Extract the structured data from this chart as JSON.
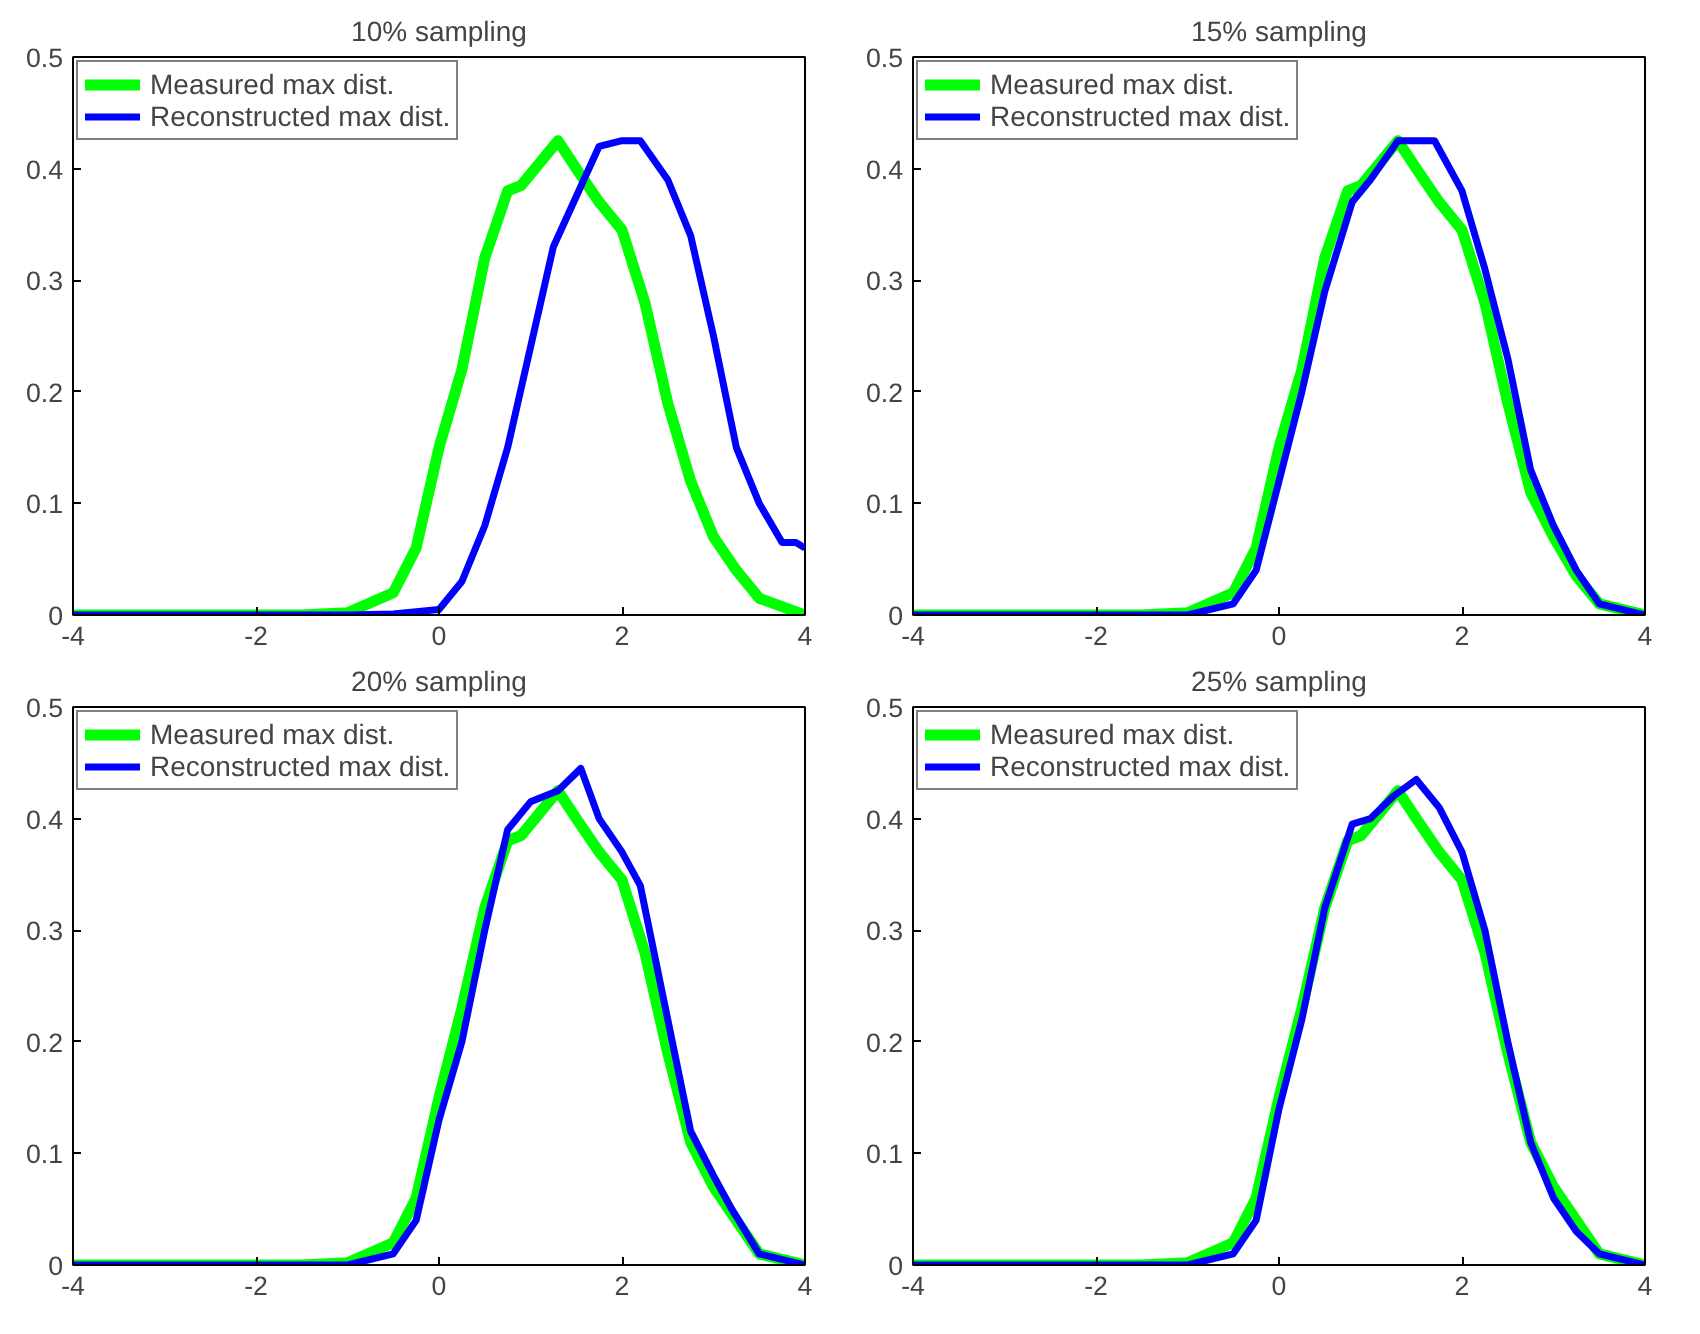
{
  "chart_data": [
    {
      "type": "line",
      "title": "10% sampling",
      "xlim": [
        -4,
        4
      ],
      "ylim": [
        0,
        0.5
      ],
      "xticks": [
        -4,
        -2,
        0,
        2,
        4
      ],
      "yticks": [
        0,
        0.1,
        0.2,
        0.3,
        0.4,
        0.5
      ],
      "grid": false,
      "legend": "top left",
      "series": [
        {
          "name": "Measured max dist.",
          "color": "#00ff00",
          "x": [
            -4,
            -1.5,
            -1,
            -0.5,
            -0.25,
            0,
            0.25,
            0.5,
            0.75,
            0.9,
            1.1,
            1.3,
            1.5,
            1.75,
            2,
            2.25,
            2.5,
            2.75,
            3,
            3.25,
            3.5,
            4
          ],
          "values": [
            0,
            0,
            0.002,
            0.02,
            0.06,
            0.15,
            0.22,
            0.32,
            0.38,
            0.385,
            0.405,
            0.425,
            0.4,
            0.37,
            0.345,
            0.28,
            0.19,
            0.12,
            0.07,
            0.04,
            0.015,
            0
          ]
        },
        {
          "name": "Reconstructed max dist.",
          "color": "#0000ff",
          "x": [
            -4,
            -1,
            -0.5,
            0,
            0.25,
            0.5,
            0.75,
            1,
            1.25,
            1.5,
            1.75,
            2,
            2.2,
            2.5,
            2.75,
            3,
            3.25,
            3.5,
            3.75,
            3.9,
            4
          ],
          "values": [
            0,
            0,
            0.001,
            0.005,
            0.03,
            0.08,
            0.15,
            0.24,
            0.33,
            0.375,
            0.42,
            0.425,
            0.425,
            0.39,
            0.34,
            0.25,
            0.15,
            0.1,
            0.065,
            0.065,
            0.06
          ]
        }
      ]
    },
    {
      "type": "line",
      "title": "15% sampling",
      "xlim": [
        -4,
        4
      ],
      "ylim": [
        0,
        0.5
      ],
      "xticks": [
        -4,
        -2,
        0,
        2,
        4
      ],
      "yticks": [
        0,
        0.1,
        0.2,
        0.3,
        0.4,
        0.5
      ],
      "grid": false,
      "legend": "top left",
      "series": [
        {
          "name": "Measured max dist.",
          "color": "#00ff00",
          "x": [
            -4,
            -1.5,
            -1,
            -0.5,
            -0.25,
            0,
            0.25,
            0.5,
            0.75,
            0.9,
            1.1,
            1.3,
            1.5,
            1.75,
            2,
            2.25,
            2.5,
            2.75,
            3,
            3.25,
            3.5,
            4
          ],
          "values": [
            0,
            0,
            0.002,
            0.02,
            0.06,
            0.15,
            0.22,
            0.32,
            0.38,
            0.385,
            0.405,
            0.425,
            0.4,
            0.37,
            0.345,
            0.28,
            0.19,
            0.11,
            0.07,
            0.035,
            0.01,
            0
          ]
        },
        {
          "name": "Reconstructed max dist.",
          "color": "#0000ff",
          "x": [
            -4,
            -1,
            -0.5,
            -0.25,
            0,
            0.25,
            0.5,
            0.8,
            1,
            1.3,
            1.7,
            2,
            2.25,
            2.5,
            2.75,
            3,
            3.25,
            3.5,
            4
          ],
          "values": [
            0,
            0,
            0.01,
            0.04,
            0.12,
            0.2,
            0.29,
            0.37,
            0.39,
            0.425,
            0.425,
            0.38,
            0.31,
            0.23,
            0.13,
            0.08,
            0.04,
            0.01,
            0
          ]
        }
      ]
    },
    {
      "type": "line",
      "title": "20% sampling",
      "xlim": [
        -4,
        4
      ],
      "ylim": [
        0,
        0.5
      ],
      "xticks": [
        -4,
        -2,
        0,
        2,
        4
      ],
      "yticks": [
        0,
        0.1,
        0.2,
        0.3,
        0.4,
        0.5
      ],
      "grid": false,
      "legend": "top left",
      "series": [
        {
          "name": "Measured max dist.",
          "color": "#00ff00",
          "x": [
            -4,
            -1.5,
            -1,
            -0.5,
            -0.25,
            0,
            0.25,
            0.5,
            0.75,
            0.9,
            1.1,
            1.3,
            1.5,
            1.75,
            2,
            2.25,
            2.5,
            2.75,
            3,
            3.25,
            3.5,
            4
          ],
          "values": [
            0,
            0,
            0.002,
            0.02,
            0.06,
            0.15,
            0.23,
            0.32,
            0.38,
            0.385,
            0.405,
            0.425,
            0.4,
            0.37,
            0.345,
            0.28,
            0.19,
            0.11,
            0.07,
            0.04,
            0.01,
            0
          ]
        },
        {
          "name": "Reconstructed max dist.",
          "color": "#0000ff",
          "x": [
            -4,
            -1,
            -0.5,
            -0.25,
            0,
            0.25,
            0.5,
            0.75,
            1,
            1.3,
            1.55,
            1.75,
            2,
            2.2,
            2.5,
            2.75,
            3,
            3.2,
            3.5,
            4
          ],
          "values": [
            0,
            0,
            0.01,
            0.04,
            0.13,
            0.2,
            0.3,
            0.39,
            0.415,
            0.425,
            0.445,
            0.4,
            0.37,
            0.34,
            0.22,
            0.12,
            0.08,
            0.05,
            0.01,
            0
          ]
        }
      ]
    },
    {
      "type": "line",
      "title": "25% sampling",
      "xlim": [
        -4,
        4
      ],
      "ylim": [
        0,
        0.5
      ],
      "xticks": [
        -4,
        -2,
        0,
        2,
        4
      ],
      "yticks": [
        0,
        0.1,
        0.2,
        0.3,
        0.4,
        0.5
      ],
      "grid": false,
      "legend": "top left",
      "series": [
        {
          "name": "Measured max dist.",
          "color": "#00ff00",
          "x": [
            -4,
            -1.5,
            -1,
            -0.5,
            -0.25,
            0,
            0.25,
            0.5,
            0.75,
            0.9,
            1.1,
            1.3,
            1.5,
            1.75,
            2,
            2.25,
            2.5,
            2.75,
            3,
            3.25,
            3.5,
            4
          ],
          "values": [
            0,
            0,
            0.002,
            0.02,
            0.06,
            0.15,
            0.23,
            0.32,
            0.38,
            0.385,
            0.405,
            0.425,
            0.4,
            0.37,
            0.345,
            0.28,
            0.19,
            0.11,
            0.07,
            0.04,
            0.01,
            0
          ]
        },
        {
          "name": "Reconstructed max dist.",
          "color": "#0000ff",
          "x": [
            -4,
            -1,
            -0.5,
            -0.25,
            0,
            0.25,
            0.5,
            0.8,
            1,
            1.25,
            1.5,
            1.75,
            2,
            2.25,
            2.5,
            2.75,
            3,
            3.25,
            3.5,
            4
          ],
          "values": [
            0,
            0,
            0.01,
            0.04,
            0.14,
            0.22,
            0.32,
            0.395,
            0.4,
            0.42,
            0.435,
            0.41,
            0.37,
            0.3,
            0.2,
            0.11,
            0.06,
            0.03,
            0.01,
            0
          ]
        }
      ]
    }
  ]
}
